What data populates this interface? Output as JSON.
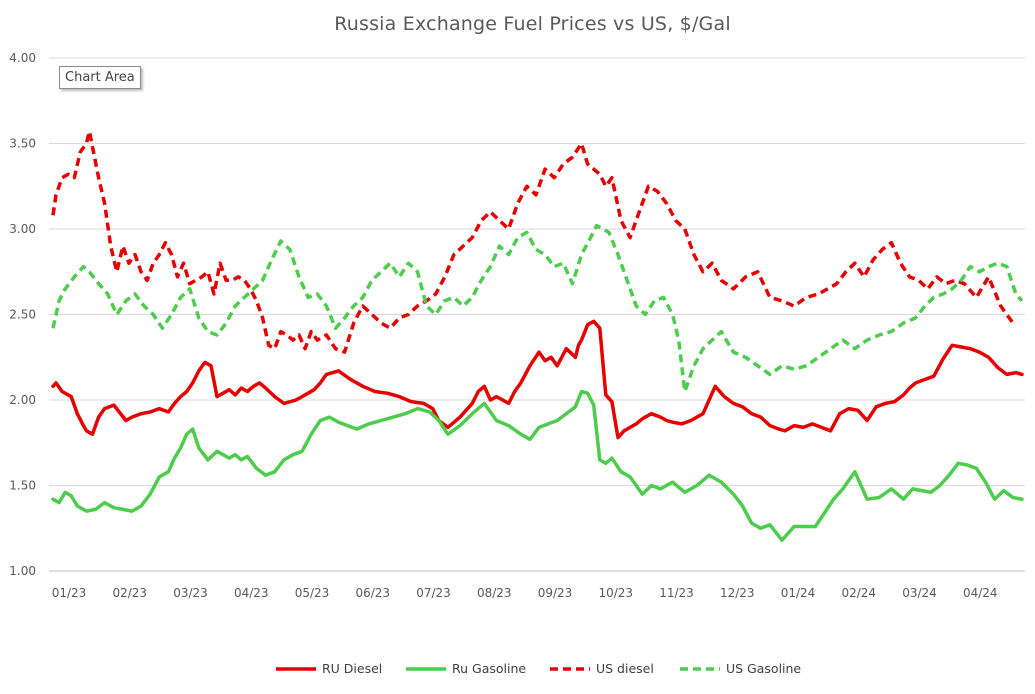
{
  "chart_data": {
    "type": "line",
    "title": "Russia Exchange Fuel Prices vs US, $/Gal",
    "xlabel": "",
    "ylabel": "",
    "ylim": [
      1.0,
      4.0
    ],
    "yticks": [
      "1.00",
      "1.50",
      "2.00",
      "2.50",
      "3.00",
      "3.50",
      "4.00"
    ],
    "x_tick_labels": [
      "01/23",
      "02/23",
      "03/23",
      "04/23",
      "05/23",
      "06/23",
      "07/23",
      "08/23",
      "09/23",
      "10/23",
      "11/23",
      "12/23",
      "01/24",
      "02/24",
      "03/24",
      "04/24"
    ],
    "x_range": [
      0,
      16
    ],
    "legend_position": "bottom",
    "tooltip": "Chart Area",
    "series": [
      {
        "name": "RU Diesel",
        "color": "#e60000",
        "dash": "solid",
        "x": [
          0.0,
          0.05,
          0.15,
          0.3,
          0.4,
          0.5,
          0.55,
          0.65,
          0.75,
          0.85,
          1.0,
          1.2,
          1.3,
          1.45,
          1.6,
          1.75,
          1.9,
          2.0,
          2.1,
          2.2,
          2.3,
          2.4,
          2.5,
          2.6,
          2.7,
          2.8,
          2.9,
          3.0,
          3.1,
          3.2,
          3.3,
          3.4,
          3.5,
          3.65,
          3.8,
          4.0,
          4.1,
          4.2,
          4.3,
          4.4,
          4.5,
          4.7,
          4.9,
          5.1,
          5.3,
          5.5,
          5.7,
          5.9,
          6.1,
          6.25,
          6.35,
          6.5,
          6.7,
          6.9,
          7.0,
          7.1,
          7.2,
          7.3,
          7.4,
          7.5,
          7.6,
          7.7,
          7.85,
          8.0,
          8.1,
          8.2,
          8.3,
          8.45,
          8.6,
          8.65,
          8.7,
          8.8,
          8.9,
          9.0,
          9.1,
          9.2,
          9.3,
          9.4,
          9.5,
          9.6,
          9.7,
          9.85,
          10.0,
          10.1,
          10.2,
          10.35,
          10.5,
          10.7,
          10.9,
          11.05,
          11.2,
          11.35,
          11.5,
          11.65,
          11.8,
          11.95,
          12.05,
          12.2,
          12.35,
          12.5,
          12.65,
          12.8,
          12.95,
          13.1,
          13.25,
          13.4,
          13.55,
          13.7,
          13.85,
          14.0,
          14.1,
          14.2,
          14.35,
          14.5,
          14.65,
          14.8,
          14.95,
          15.1,
          15.25,
          15.4,
          15.55,
          15.7,
          15.85,
          15.95
        ],
        "values": [
          2.08,
          2.1,
          2.05,
          2.02,
          1.92,
          1.85,
          1.82,
          1.8,
          1.9,
          1.95,
          1.97,
          1.88,
          1.9,
          1.92,
          1.93,
          1.95,
          1.93,
          1.98,
          2.02,
          2.05,
          2.1,
          2.17,
          2.22,
          2.2,
          2.02,
          2.04,
          2.06,
          2.03,
          2.07,
          2.05,
          2.08,
          2.1,
          2.07,
          2.02,
          1.98,
          2.0,
          2.02,
          2.04,
          2.06,
          2.1,
          2.15,
          2.17,
          2.12,
          2.08,
          2.05,
          2.04,
          2.02,
          1.99,
          1.98,
          1.95,
          1.88,
          1.84,
          1.9,
          1.98,
          2.05,
          2.08,
          2.0,
          2.02,
          2.0,
          1.98,
          2.05,
          2.1,
          2.2,
          2.28,
          2.23,
          2.25,
          2.2,
          2.3,
          2.25,
          2.32,
          2.35,
          2.44,
          2.46,
          2.42,
          2.03,
          1.99,
          1.78,
          1.82,
          1.84,
          1.86,
          1.89,
          1.92,
          1.9,
          1.88,
          1.87,
          1.86,
          1.88,
          1.92,
          2.08,
          2.02,
          1.98,
          1.96,
          1.92,
          1.9,
          1.85,
          1.83,
          1.82,
          1.85,
          1.84,
          1.86,
          1.84,
          1.82,
          1.92,
          1.95,
          1.94,
          1.88,
          1.96,
          1.98,
          1.99,
          2.03,
          2.07,
          2.1,
          2.12,
          2.14,
          2.24,
          2.32,
          2.31,
          2.3,
          2.28,
          2.25,
          2.19,
          2.15,
          2.16,
          2.15
        ]
      },
      {
        "name": "Ru Gasoline",
        "color": "#4dcc4d",
        "dash": "solid",
        "x": [
          0.0,
          0.1,
          0.2,
          0.3,
          0.4,
          0.55,
          0.7,
          0.85,
          1.0,
          1.15,
          1.3,
          1.45,
          1.6,
          1.75,
          1.9,
          2.0,
          2.1,
          2.2,
          2.3,
          2.4,
          2.55,
          2.7,
          2.8,
          2.9,
          3.0,
          3.1,
          3.2,
          3.35,
          3.5,
          3.65,
          3.8,
          3.95,
          4.1,
          4.25,
          4.4,
          4.55,
          4.7,
          4.85,
          5.0,
          5.2,
          5.4,
          5.6,
          5.8,
          6.0,
          6.2,
          6.35,
          6.5,
          6.7,
          6.9,
          7.1,
          7.3,
          7.5,
          7.7,
          7.85,
          8.0,
          8.15,
          8.3,
          8.45,
          8.6,
          8.7,
          8.8,
          8.9,
          9.0,
          9.1,
          9.2,
          9.35,
          9.5,
          9.7,
          9.85,
          10.0,
          10.2,
          10.4,
          10.6,
          10.8,
          11.0,
          11.2,
          11.35,
          11.5,
          11.65,
          11.8,
          12.0,
          12.2,
          12.4,
          12.55,
          12.7,
          12.85,
          13.0,
          13.2,
          13.4,
          13.6,
          13.8,
          14.0,
          14.15,
          14.3,
          14.45,
          14.6,
          14.75,
          14.9,
          15.05,
          15.2,
          15.35,
          15.5,
          15.65,
          15.8,
          15.95
        ],
        "values": [
          1.42,
          1.4,
          1.46,
          1.44,
          1.38,
          1.35,
          1.36,
          1.4,
          1.37,
          1.36,
          1.35,
          1.38,
          1.45,
          1.55,
          1.58,
          1.66,
          1.72,
          1.8,
          1.83,
          1.72,
          1.65,
          1.7,
          1.68,
          1.66,
          1.68,
          1.65,
          1.67,
          1.6,
          1.56,
          1.58,
          1.65,
          1.68,
          1.7,
          1.8,
          1.88,
          1.9,
          1.87,
          1.85,
          1.83,
          1.86,
          1.88,
          1.9,
          1.92,
          1.95,
          1.93,
          1.88,
          1.8,
          1.85,
          1.92,
          1.98,
          1.88,
          1.85,
          1.8,
          1.77,
          1.84,
          1.86,
          1.88,
          1.92,
          1.96,
          2.05,
          2.04,
          1.97,
          1.65,
          1.63,
          1.66,
          1.58,
          1.55,
          1.45,
          1.5,
          1.48,
          1.52,
          1.46,
          1.5,
          1.56,
          1.52,
          1.45,
          1.38,
          1.28,
          1.25,
          1.27,
          1.18,
          1.26,
          1.26,
          1.26,
          1.34,
          1.42,
          1.48,
          1.58,
          1.42,
          1.43,
          1.48,
          1.42,
          1.48,
          1.47,
          1.46,
          1.5,
          1.56,
          1.63,
          1.62,
          1.6,
          1.52,
          1.42,
          1.47,
          1.43,
          1.42
        ]
      },
      {
        "name": "US diesel",
        "color": "#e60000",
        "dash": "dashed",
        "x": [
          0.0,
          0.05,
          0.15,
          0.25,
          0.35,
          0.45,
          0.55,
          0.6,
          0.65,
          0.75,
          0.85,
          0.95,
          1.05,
          1.15,
          1.25,
          1.35,
          1.45,
          1.55,
          1.65,
          1.75,
          1.85,
          1.95,
          2.05,
          2.15,
          2.25,
          2.35,
          2.45,
          2.55,
          2.65,
          2.75,
          2.85,
          2.95,
          3.05,
          3.15,
          3.25,
          3.35,
          3.45,
          3.55,
          3.65,
          3.75,
          3.85,
          3.95,
          4.05,
          4.15,
          4.25,
          4.35,
          4.5,
          4.65,
          4.8,
          4.95,
          5.1,
          5.25,
          5.4,
          5.55,
          5.7,
          5.85,
          6.0,
          6.15,
          6.3,
          6.45,
          6.6,
          6.75,
          6.9,
          7.05,
          7.2,
          7.35,
          7.5,
          7.65,
          7.8,
          7.95,
          8.1,
          8.25,
          8.4,
          8.55,
          8.7,
          8.8,
          8.9,
          9.0,
          9.1,
          9.2,
          9.35,
          9.5,
          9.65,
          9.8,
          9.95,
          10.1,
          10.25,
          10.4,
          10.55,
          10.7,
          10.85,
          11.0,
          11.2,
          11.4,
          11.6,
          11.8,
          12.0,
          12.2,
          12.4,
          12.6,
          12.75,
          12.9,
          13.05,
          13.2,
          13.35,
          13.5,
          13.65,
          13.8,
          13.95,
          14.1,
          14.25,
          14.4,
          14.55,
          14.7,
          14.85,
          15.0,
          15.2,
          15.4,
          15.6,
          15.8
        ],
        "values": [
          3.08,
          3.2,
          3.3,
          3.32,
          3.3,
          3.45,
          3.5,
          3.57,
          3.48,
          3.3,
          3.15,
          2.9,
          2.75,
          2.9,
          2.8,
          2.85,
          2.75,
          2.7,
          2.8,
          2.85,
          2.92,
          2.85,
          2.72,
          2.8,
          2.68,
          2.7,
          2.72,
          2.75,
          2.62,
          2.8,
          2.7,
          2.7,
          2.72,
          2.7,
          2.65,
          2.58,
          2.48,
          2.32,
          2.3,
          2.4,
          2.38,
          2.35,
          2.38,
          2.3,
          2.4,
          2.35,
          2.38,
          2.3,
          2.28,
          2.45,
          2.55,
          2.5,
          2.45,
          2.42,
          2.48,
          2.5,
          2.55,
          2.58,
          2.62,
          2.72,
          2.85,
          2.9,
          2.95,
          3.05,
          3.1,
          3.05,
          3.0,
          3.15,
          3.25,
          3.2,
          3.35,
          3.3,
          3.38,
          3.42,
          3.5,
          3.38,
          3.35,
          3.32,
          3.25,
          3.3,
          3.05,
          2.95,
          3.1,
          3.25,
          3.22,
          3.15,
          3.05,
          3.0,
          2.85,
          2.75,
          2.8,
          2.7,
          2.65,
          2.72,
          2.75,
          2.6,
          2.58,
          2.55,
          2.6,
          2.62,
          2.65,
          2.68,
          2.75,
          2.8,
          2.72,
          2.82,
          2.88,
          2.92,
          2.8,
          2.72,
          2.7,
          2.65,
          2.72,
          2.68,
          2.7,
          2.68,
          2.6,
          2.72,
          2.55,
          2.45
        ]
      },
      {
        "name": "US Gasoline",
        "color": "#4dcc4d",
        "dash": "dashed",
        "x": [
          0.0,
          0.1,
          0.2,
          0.35,
          0.5,
          0.6,
          0.75,
          0.9,
          1.05,
          1.2,
          1.35,
          1.5,
          1.65,
          1.8,
          1.95,
          2.1,
          2.25,
          2.4,
          2.55,
          2.7,
          2.85,
          3.0,
          3.15,
          3.3,
          3.45,
          3.6,
          3.75,
          3.9,
          4.05,
          4.2,
          4.35,
          4.5,
          4.65,
          4.8,
          4.95,
          5.1,
          5.25,
          5.4,
          5.55,
          5.7,
          5.85,
          6.0,
          6.15,
          6.3,
          6.45,
          6.6,
          6.75,
          6.9,
          7.05,
          7.2,
          7.35,
          7.5,
          7.65,
          7.8,
          7.95,
          8.1,
          8.25,
          8.4,
          8.55,
          8.7,
          8.85,
          8.95,
          9.05,
          9.15,
          9.3,
          9.45,
          9.6,
          9.75,
          9.9,
          10.05,
          10.2,
          10.3,
          10.4,
          10.55,
          10.7,
          10.85,
          11.0,
          11.2,
          11.4,
          11.6,
          11.8,
          12.0,
          12.2,
          12.4,
          12.6,
          12.8,
          13.0,
          13.2,
          13.4,
          13.6,
          13.8,
          14.0,
          14.2,
          14.35,
          14.5,
          14.65,
          14.8,
          14.95,
          15.1,
          15.25,
          15.4,
          15.55,
          15.7,
          15.85,
          15.95
        ],
        "values": [
          2.42,
          2.58,
          2.65,
          2.72,
          2.78,
          2.75,
          2.68,
          2.62,
          2.5,
          2.58,
          2.62,
          2.55,
          2.5,
          2.42,
          2.5,
          2.6,
          2.65,
          2.48,
          2.4,
          2.38,
          2.45,
          2.55,
          2.6,
          2.65,
          2.7,
          2.82,
          2.93,
          2.88,
          2.72,
          2.6,
          2.62,
          2.55,
          2.42,
          2.48,
          2.55,
          2.6,
          2.7,
          2.75,
          2.8,
          2.72,
          2.8,
          2.75,
          2.55,
          2.5,
          2.58,
          2.6,
          2.55,
          2.6,
          2.7,
          2.78,
          2.9,
          2.85,
          2.95,
          2.98,
          2.88,
          2.85,
          2.78,
          2.8,
          2.68,
          2.85,
          2.95,
          3.02,
          3.0,
          2.98,
          2.85,
          2.7,
          2.55,
          2.5,
          2.58,
          2.6,
          2.5,
          2.35,
          2.05,
          2.2,
          2.3,
          2.35,
          2.4,
          2.28,
          2.25,
          2.2,
          2.15,
          2.2,
          2.18,
          2.2,
          2.25,
          2.3,
          2.35,
          2.3,
          2.35,
          2.38,
          2.4,
          2.45,
          2.48,
          2.55,
          2.6,
          2.62,
          2.65,
          2.7,
          2.78,
          2.75,
          2.78,
          2.8,
          2.78,
          2.62,
          2.58
        ]
      }
    ]
  }
}
